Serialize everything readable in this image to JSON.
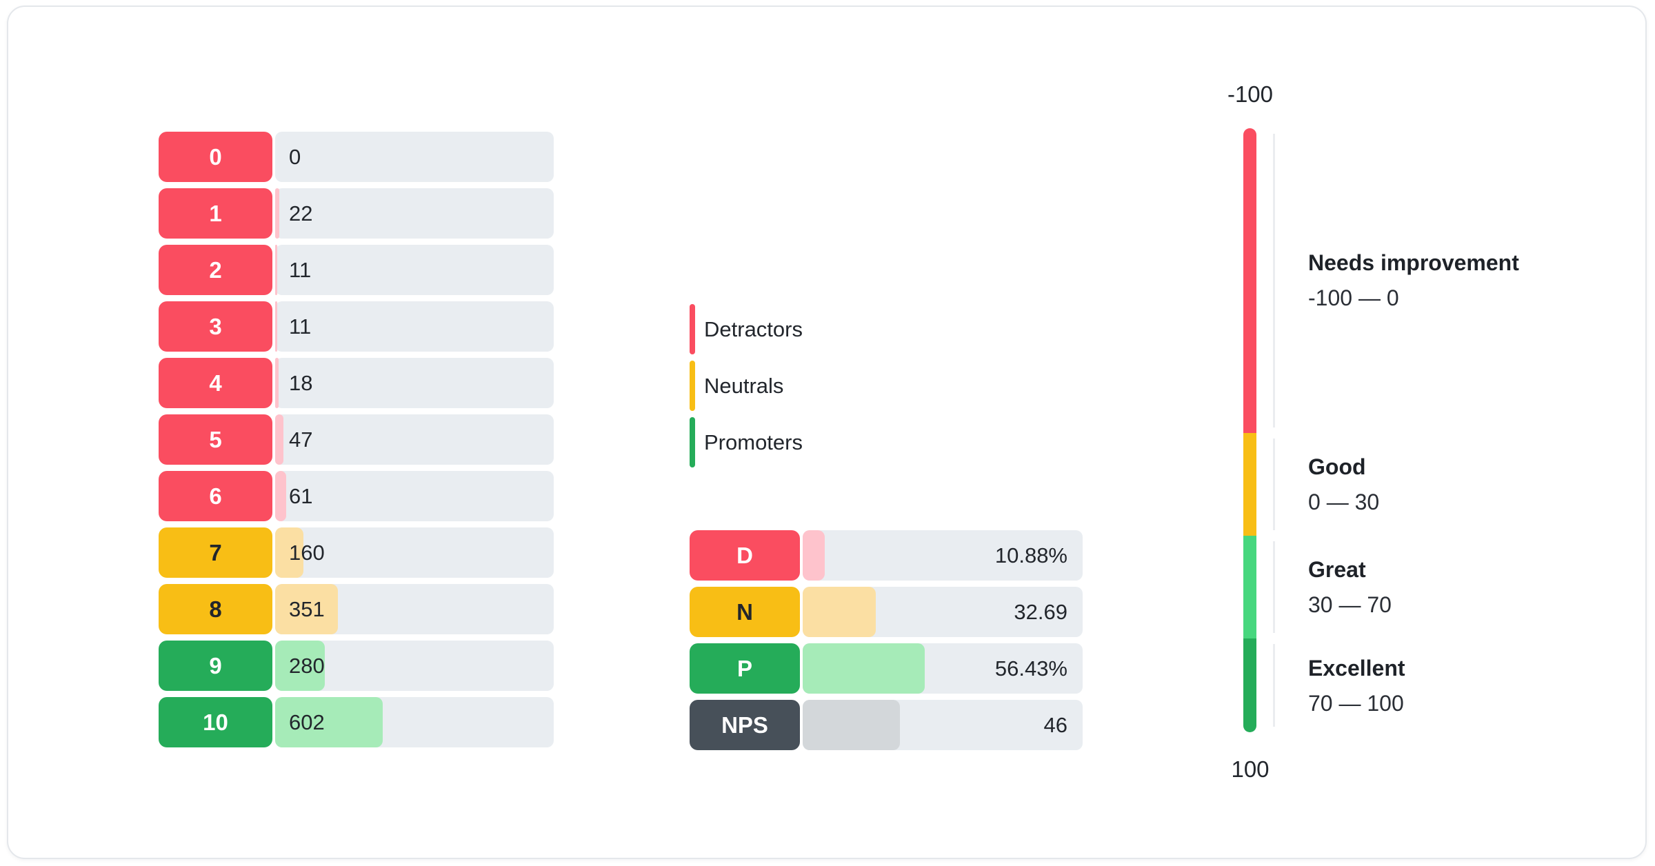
{
  "distribution": {
    "rows": [
      {
        "score": "0",
        "count": "0",
        "group": "detractor",
        "fill_pct": 0
      },
      {
        "score": "1",
        "count": "22",
        "group": "detractor",
        "fill_pct": 1.41
      },
      {
        "score": "2",
        "count": "11",
        "group": "detractor",
        "fill_pct": 0.7
      },
      {
        "score": "3",
        "count": "11",
        "group": "detractor",
        "fill_pct": 0.7
      },
      {
        "score": "4",
        "count": "18",
        "group": "detractor",
        "fill_pct": 1.15
      },
      {
        "score": "5",
        "count": "47",
        "group": "detractor",
        "fill_pct": 3.01
      },
      {
        "score": "6",
        "count": "61",
        "group": "detractor",
        "fill_pct": 3.9
      },
      {
        "score": "7",
        "count": "160",
        "group": "neutral",
        "fill_pct": 10.24
      },
      {
        "score": "8",
        "count": "351",
        "group": "neutral",
        "fill_pct": 22.46
      },
      {
        "score": "9",
        "count": "280",
        "group": "promoter",
        "fill_pct": 17.91
      },
      {
        "score": "10",
        "count": "602",
        "group": "promoter",
        "fill_pct": 38.52
      }
    ]
  },
  "legend": {
    "items": [
      {
        "label": "Detractors",
        "color": "#fa4d60"
      },
      {
        "label": "Neutrals",
        "color": "#f8be15"
      },
      {
        "label": "Promoters",
        "color": "#25ac59"
      }
    ]
  },
  "summary": {
    "rows": [
      {
        "label": "D",
        "value": "10.88%",
        "group": "detractor",
        "fill_pct": 8
      },
      {
        "label": "N",
        "value": "32.69",
        "group": "neutral",
        "fill_pct": 26
      },
      {
        "label": "P",
        "value": "56.43%",
        "group": "promoter",
        "fill_pct": 43.7
      },
      {
        "label": "NPS",
        "value": "46",
        "group": "nps",
        "fill_pct": 34.8
      }
    ]
  },
  "gauge": {
    "top_label": "-100",
    "bottom_label": "100",
    "sections": [
      {
        "name": "Needs improvement",
        "range": "-100 — 0",
        "color": "#fa4d60",
        "height_pct": 50.5
      },
      {
        "name": "Good",
        "range": "0 — 30",
        "color": "#f8be15",
        "height_pct": 17
      },
      {
        "name": "Great",
        "range": "30 — 70",
        "color": "#47d77e",
        "height_pct": 17
      },
      {
        "name": "Excellent",
        "range": "70 — 100",
        "color": "#25ac59",
        "height_pct": 15.5
      }
    ]
  },
  "colors": {
    "detractor": "#fa4d60",
    "detractor_light": "#fec3cc",
    "neutral": "#f8be15",
    "neutral_light": "#fbdfa3",
    "promoter": "#25ac59",
    "promoter_light": "#a6ebb8",
    "nps": "#475059",
    "nps_light": "#d3d7da",
    "track": "#e9edf1",
    "gauge_great": "#47d77e"
  },
  "chart_data": [
    {
      "type": "bar",
      "title": "NPS score distribution (responses per score)",
      "orientation": "horizontal",
      "categories": [
        "0",
        "1",
        "2",
        "3",
        "4",
        "5",
        "6",
        "7",
        "8",
        "9",
        "10"
      ],
      "values": [
        0,
        22,
        11,
        11,
        18,
        47,
        61,
        160,
        351,
        280,
        602
      ],
      "groups": {
        "detractors": "scores 0-6",
        "neutrals": "scores 7-8",
        "promoters": "scores 9-10"
      },
      "legend": [
        "Detractors",
        "Neutrals",
        "Promoters"
      ],
      "legend_position": "right"
    },
    {
      "type": "bar",
      "title": "NPS summary",
      "orientation": "horizontal",
      "categories": [
        "D",
        "N",
        "P",
        "NPS"
      ],
      "values": [
        10.88,
        32.69,
        56.43,
        46
      ],
      "value_labels": [
        "10.88%",
        "32.69",
        "56.43%",
        "46"
      ]
    },
    {
      "type": "gauge",
      "orientation": "vertical",
      "axis_range": [
        -100,
        100
      ],
      "axis_labels": [
        "-100",
        "100"
      ],
      "sections": [
        {
          "label": "Needs improvement",
          "range": [
            -100,
            0
          ]
        },
        {
          "label": "Good",
          "range": [
            0,
            30
          ]
        },
        {
          "label": "Great",
          "range": [
            30,
            70
          ]
        },
        {
          "label": "Excellent",
          "range": [
            70,
            100
          ]
        }
      ]
    }
  ]
}
